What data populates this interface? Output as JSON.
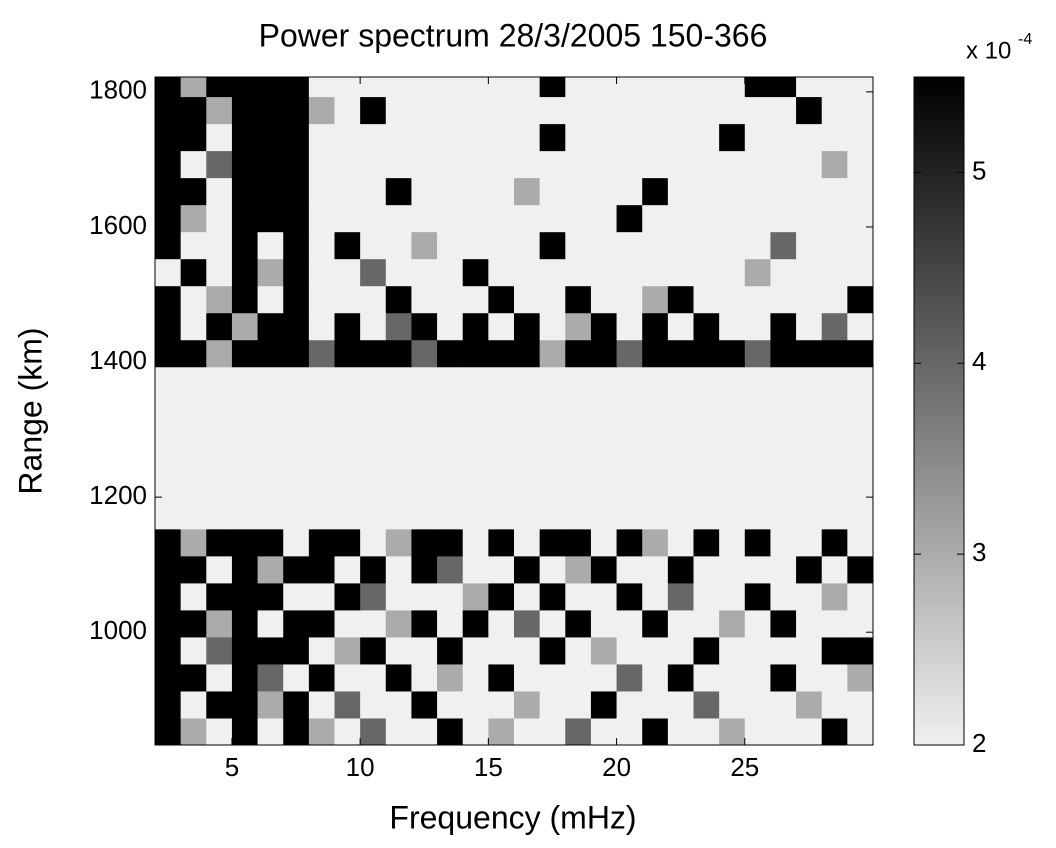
{
  "chart_data": {
    "type": "heatmap",
    "title": "Power spectrum 28/3/2005 150-366",
    "x_label": "Frequency (mHz)",
    "y_label": "Range (km)",
    "colorbar_label": "x 10",
    "colorbar_exponent": "-4",
    "xlim": [
      2,
      30
    ],
    "xticks": [
      5,
      10,
      15,
      20,
      25
    ],
    "ylim": [
      833,
      1822
    ],
    "yticks": [
      1000,
      1200,
      1400,
      1600,
      1800
    ],
    "clim": [
      2,
      5.5
    ],
    "cticks": [
      2,
      3,
      4,
      5
    ],
    "colormap": [
      "#f0f0f0",
      "#000000"
    ],
    "x": [
      2.5,
      3.5,
      4.5,
      5.5,
      6.5,
      7.5,
      8.5,
      9.5,
      10.5,
      11.5,
      12.5,
      13.5,
      14.5,
      15.5,
      16.5,
      17.5,
      18.5,
      19.5,
      20.5,
      21.5,
      22.5,
      23.5,
      24.5,
      25.5,
      26.5,
      27.5,
      28.5,
      29.5
    ],
    "y": [
      853,
      893,
      933,
      973,
      1013,
      1053,
      1093,
      1133,
      1173,
      1213,
      1253,
      1293,
      1333,
      1373,
      1413,
      1453,
      1493,
      1533,
      1573,
      1613,
      1653,
      1693,
      1733,
      1773,
      1813
    ],
    "z": [
      [
        5.5,
        3,
        2,
        5.5,
        2,
        5.5,
        3,
        2,
        4,
        2,
        2,
        5.5,
        2,
        3,
        2,
        2,
        4,
        2,
        2,
        5.5,
        2,
        2,
        3,
        2,
        2,
        2,
        5.5,
        2
      ],
      [
        5.5,
        2,
        5.5,
        5.5,
        3,
        5.5,
        2,
        4,
        2,
        2,
        5.5,
        2,
        2,
        2,
        3,
        2,
        2,
        5.5,
        2,
        2,
        2,
        4,
        2,
        2,
        2,
        3,
        2,
        2
      ],
      [
        5.5,
        5.5,
        2,
        5.5,
        4,
        2,
        5.5,
        2,
        2,
        5.5,
        2,
        3,
        2,
        5.5,
        2,
        2,
        2,
        2,
        4,
        2,
        5.5,
        2,
        2,
        2,
        5.5,
        2,
        2,
        3
      ],
      [
        5.5,
        2,
        4,
        5.5,
        5.5,
        5.5,
        2,
        3,
        5.5,
        2,
        2,
        5.5,
        2,
        2,
        2,
        5.5,
        2,
        3,
        2,
        2,
        2,
        5.5,
        2,
        2,
        2,
        2,
        5.5,
        5.5
      ],
      [
        5.5,
        5.5,
        3,
        5.5,
        2,
        5.5,
        5.5,
        2,
        2,
        3,
        5.5,
        2,
        5.5,
        2,
        4,
        2,
        5.5,
        2,
        2,
        5.5,
        2,
        2,
        3,
        2,
        5.5,
        2,
        2,
        2
      ],
      [
        5.5,
        2,
        5.5,
        5.5,
        5.5,
        2,
        2,
        5.5,
        4,
        2,
        2,
        2,
        3,
        5.5,
        2,
        5.5,
        2,
        2,
        5.5,
        2,
        4,
        2,
        2,
        5.5,
        2,
        2,
        3,
        2
      ],
      [
        5.5,
        5.5,
        2,
        5.5,
        3,
        5.5,
        5.5,
        2,
        5.5,
        2,
        5.5,
        4,
        2,
        2,
        5.5,
        2,
        3,
        5.5,
        2,
        2,
        5.5,
        2,
        2,
        2,
        2,
        5.5,
        2,
        5.5
      ],
      [
        5.5,
        3,
        5.5,
        5.5,
        5.5,
        2,
        5.5,
        5.5,
        2,
        3,
        5.5,
        5.5,
        2,
        5.5,
        2,
        5.5,
        5.5,
        2,
        5.5,
        3,
        2,
        5.5,
        2,
        5.5,
        2,
        2,
        5.5,
        2
      ],
      [
        2,
        2,
        2,
        2,
        2,
        2,
        2,
        2,
        2,
        2,
        2,
        2,
        2,
        2,
        2,
        2,
        2,
        2,
        2,
        2,
        2,
        2,
        2,
        2,
        2,
        2,
        2,
        2
      ],
      [
        2,
        2,
        2,
        2,
        2,
        2,
        2,
        2,
        2,
        2,
        2,
        2,
        2,
        2,
        2,
        2,
        2,
        2,
        2,
        2,
        2,
        2,
        2,
        2,
        2,
        2,
        2,
        2
      ],
      [
        2,
        2,
        2,
        2,
        2,
        2,
        2,
        2,
        2,
        2,
        2,
        2,
        2,
        2,
        2,
        2,
        2,
        2,
        2,
        2,
        2,
        2,
        2,
        2,
        2,
        2,
        2,
        2
      ],
      [
        2,
        2,
        2,
        2,
        2,
        2,
        2,
        2,
        2,
        2,
        2,
        2,
        2,
        2,
        2,
        2,
        2,
        2,
        2,
        2,
        2,
        2,
        2,
        2,
        2,
        2,
        2,
        2
      ],
      [
        2,
        2,
        2,
        2,
        2,
        2,
        2,
        2,
        2,
        2,
        2,
        2,
        2,
        2,
        2,
        2,
        2,
        2,
        2,
        2,
        2,
        2,
        2,
        2,
        2,
        2,
        2,
        2
      ],
      [
        2,
        2,
        2,
        2,
        2,
        2,
        2,
        2,
        2,
        2,
        2,
        2,
        2,
        2,
        2,
        2,
        2,
        2,
        2,
        2,
        2,
        2,
        2,
        2,
        2,
        2,
        2,
        2
      ],
      [
        5.5,
        5.5,
        3,
        5.5,
        5.5,
        5.5,
        4,
        5.5,
        5.5,
        5.5,
        4,
        5.5,
        5.5,
        5.5,
        5.5,
        3,
        5.5,
        5.5,
        4,
        5.5,
        5.5,
        5.5,
        5.5,
        4,
        5.5,
        5.5,
        5.5,
        5.5
      ],
      [
        5.5,
        2,
        5.5,
        3,
        5.5,
        5.5,
        2,
        5.5,
        2,
        4,
        5.5,
        2,
        5.5,
        2,
        5.5,
        2,
        3,
        5.5,
        2,
        5.5,
        2,
        5.5,
        2,
        2,
        5.5,
        2,
        4,
        2
      ],
      [
        5.5,
        2,
        3,
        5.5,
        2,
        5.5,
        2,
        2,
        2,
        5.5,
        2,
        2,
        2,
        5.5,
        2,
        2,
        5.5,
        2,
        2,
        3,
        5.5,
        2,
        2,
        2,
        2,
        2,
        2,
        5.5
      ],
      [
        2,
        5.5,
        2,
        5.5,
        3,
        5.5,
        2,
        2,
        4,
        2,
        2,
        2,
        5.5,
        2,
        2,
        2,
        2,
        2,
        2,
        2,
        2,
        2,
        2,
        3,
        2,
        2,
        2,
        2
      ],
      [
        5.5,
        2,
        2,
        5.5,
        2,
        5.5,
        2,
        5.5,
        2,
        2,
        3,
        2,
        2,
        2,
        2,
        5.5,
        2,
        2,
        2,
        2,
        2,
        2,
        2,
        2,
        4,
        2,
        2,
        2
      ],
      [
        5.5,
        3,
        2,
        5.5,
        5.5,
        5.5,
        2,
        2,
        2,
        2,
        2,
        2,
        2,
        2,
        2,
        2,
        2,
        2,
        5.5,
        2,
        2,
        2,
        2,
        2,
        2,
        2,
        2,
        2
      ],
      [
        5.5,
        5.5,
        2,
        5.5,
        5.5,
        5.5,
        2,
        2,
        2,
        5.5,
        2,
        2,
        2,
        2,
        3,
        2,
        2,
        2,
        2,
        5.5,
        2,
        2,
        2,
        2,
        2,
        2,
        2,
        2
      ],
      [
        5.5,
        2,
        4,
        5.5,
        5.5,
        5.5,
        2,
        2,
        2,
        2,
        2,
        2,
        2,
        2,
        2,
        2,
        2,
        2,
        2,
        2,
        2,
        2,
        2,
        2,
        2,
        2,
        3,
        2
      ],
      [
        5.5,
        5.5,
        2,
        5.5,
        5.5,
        5.5,
        2,
        2,
        2,
        2,
        2,
        2,
        2,
        2,
        2,
        5.5,
        2,
        2,
        2,
        2,
        2,
        2,
        5.5,
        2,
        2,
        2,
        2,
        2
      ],
      [
        5.5,
        5.5,
        3,
        5.5,
        5.5,
        5.5,
        3,
        2,
        5.5,
        2,
        2,
        2,
        2,
        2,
        2,
        2,
        2,
        2,
        2,
        2,
        2,
        2,
        2,
        2,
        2,
        5.5,
        2,
        2
      ],
      [
        5.5,
        3,
        5.5,
        5.5,
        5.5,
        5.5,
        2,
        2,
        2,
        2,
        2,
        2,
        2,
        2,
        2,
        5.5,
        2,
        2,
        2,
        2,
        2,
        2,
        2,
        5.5,
        5.5,
        2,
        2,
        2
      ]
    ]
  }
}
